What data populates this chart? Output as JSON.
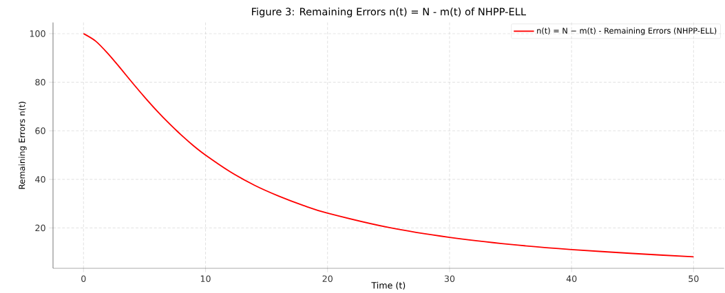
{
  "chart_data": {
    "type": "line",
    "title": "Figure 3: Remaining Errors n(t) = N - m(t) of NHPP-ELL",
    "xlabel": "Time (t)",
    "ylabel": "Remaining Errors n(t)",
    "x": [
      0,
      1,
      2,
      3,
      4,
      5,
      6,
      7,
      8,
      9,
      10,
      12,
      14,
      16,
      18,
      20,
      25,
      30,
      35,
      40,
      45,
      50
    ],
    "series": [
      {
        "name": "n(t) = N − m(t) - Remaining Errors (NHPP-ELL)",
        "color": "#ff0000",
        "values": [
          100,
          96.9,
          91.8,
          85.9,
          79.8,
          73.9,
          68.3,
          63.1,
          58.3,
          53.9,
          50,
          43.2,
          37.6,
          33.1,
          29.3,
          26.1,
          20.2,
          16.1,
          13.2,
          11.1,
          9.5,
          8.1
        ]
      }
    ],
    "xlim": [
      -2.5,
      52.5
    ],
    "ylim": [
      3.4,
      104.6
    ],
    "xticks": [
      0,
      10,
      20,
      30,
      40,
      50
    ],
    "yticks": [
      20,
      40,
      60,
      80,
      100
    ],
    "grid": true,
    "legend": "top right",
    "marker": "none",
    "line_style": "solid"
  }
}
